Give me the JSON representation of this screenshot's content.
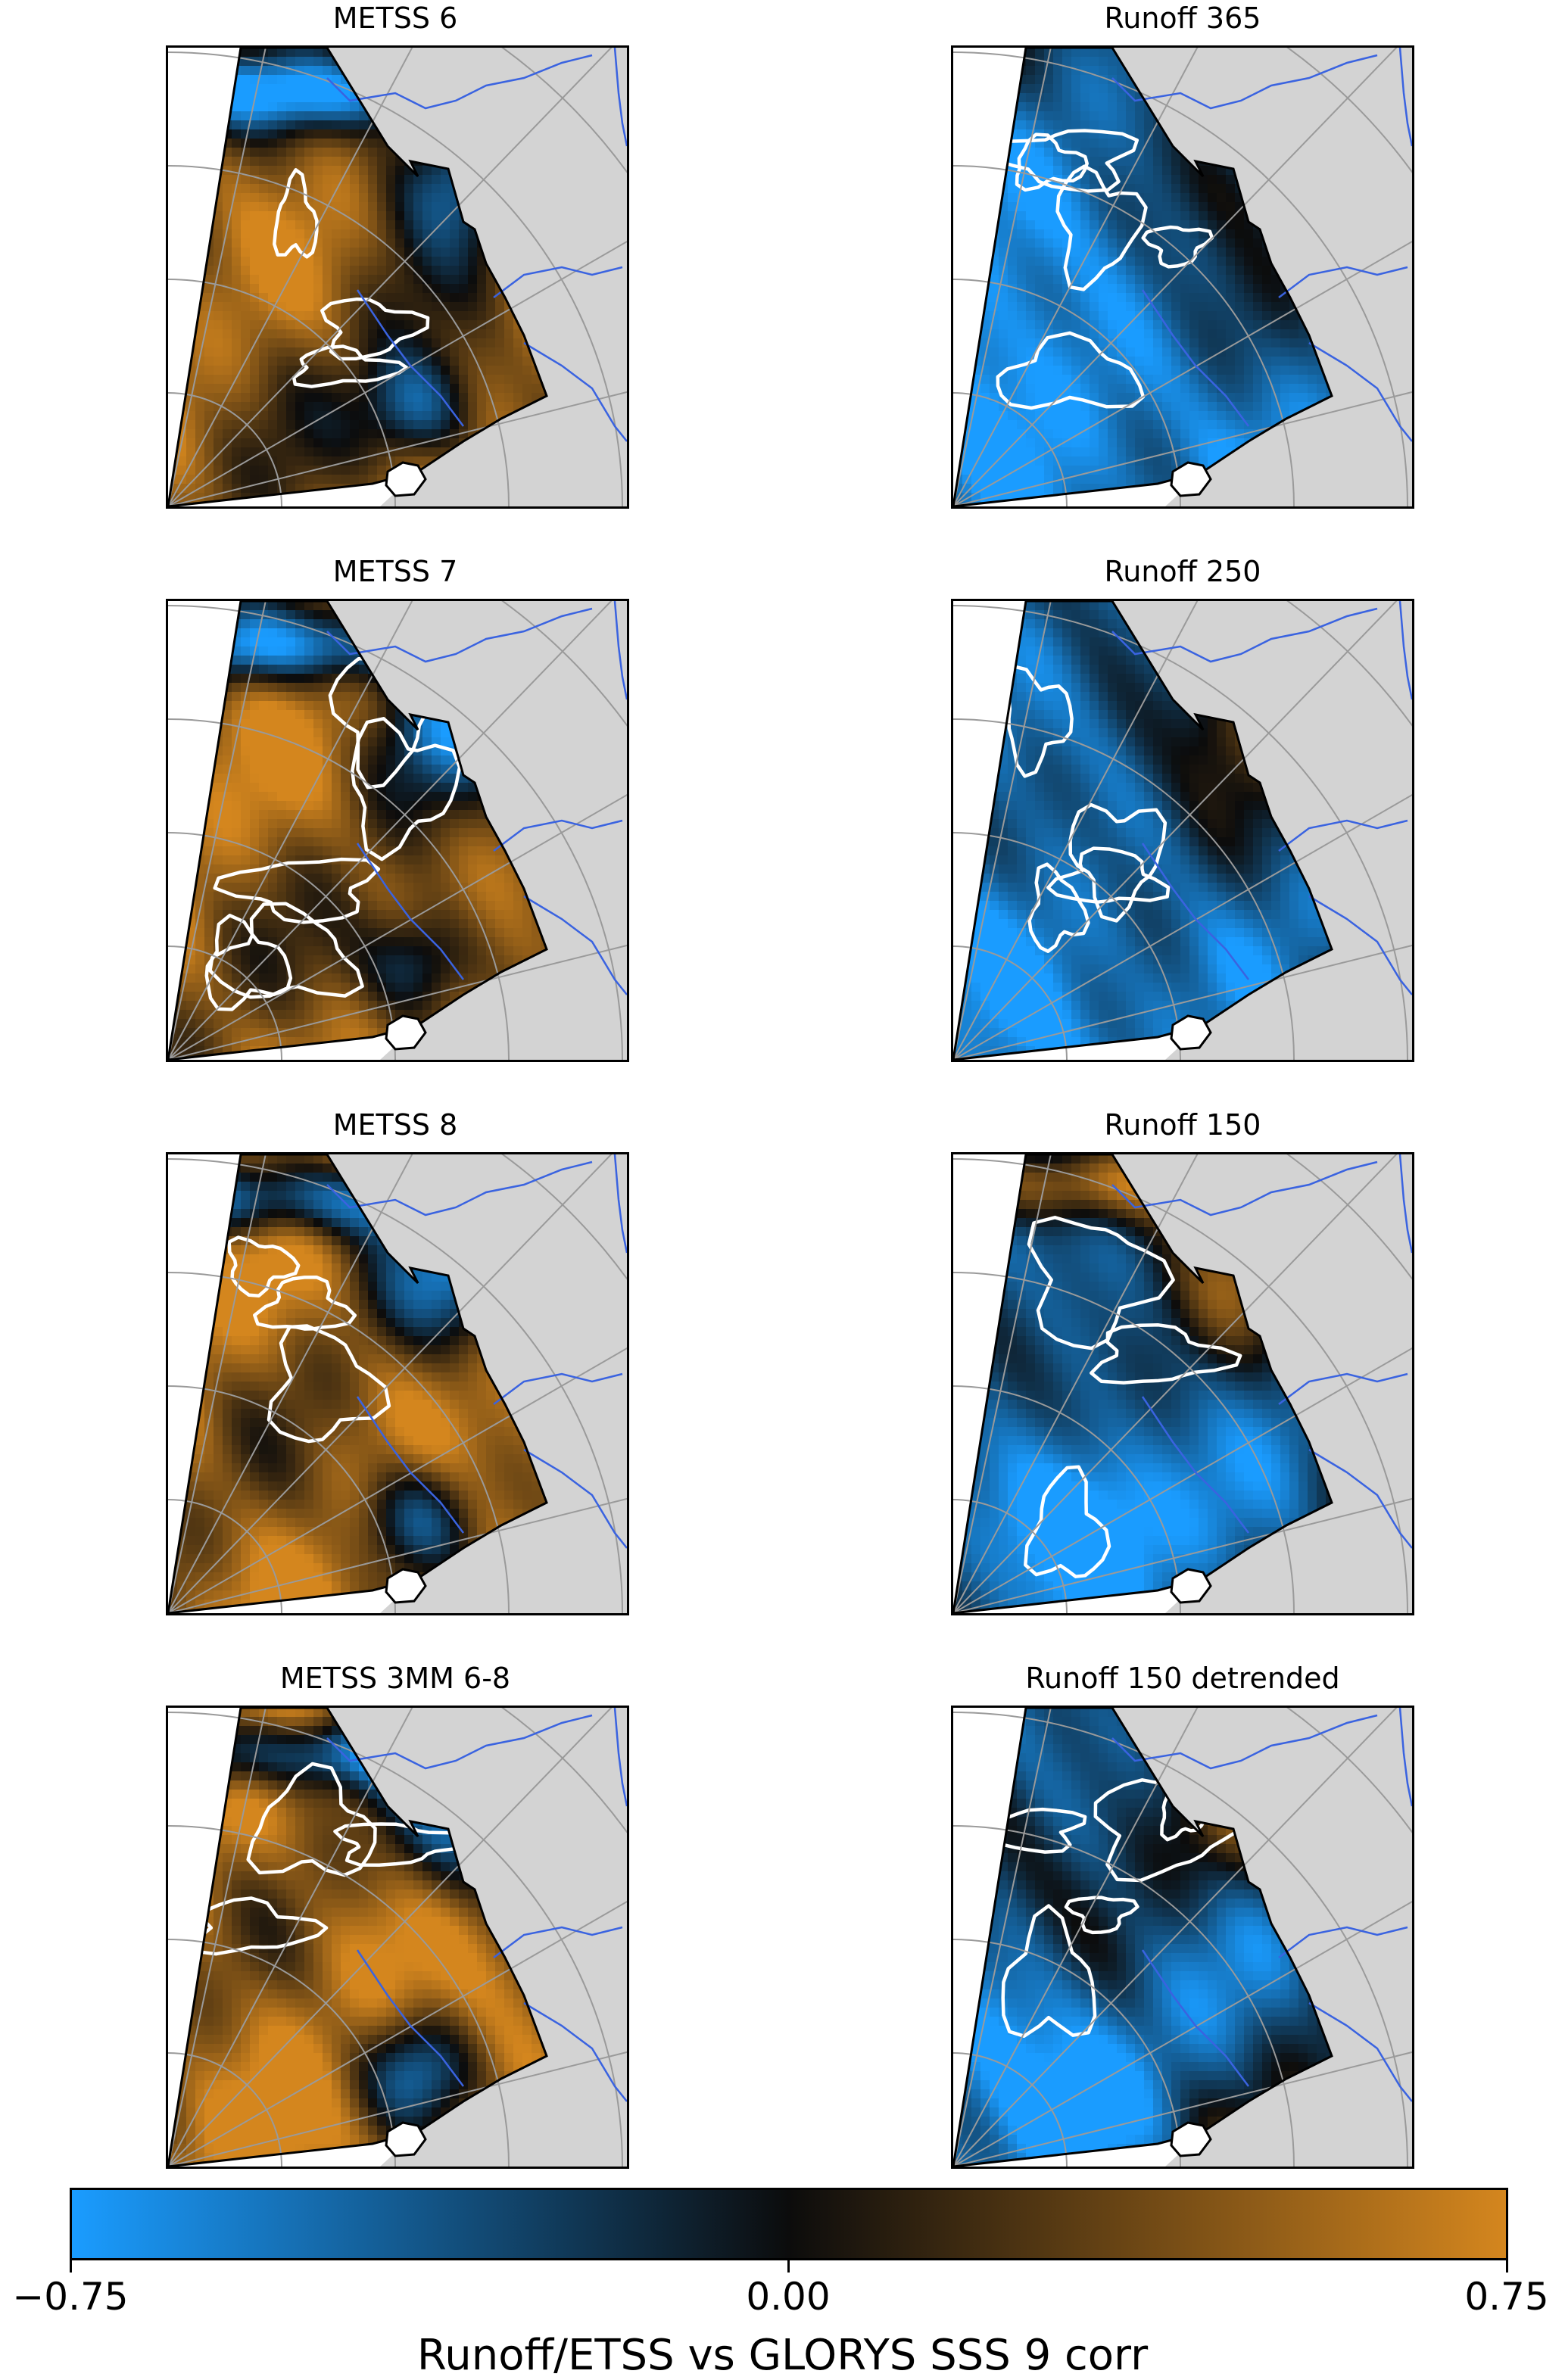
{
  "panels": [
    {
      "id": "metss6",
      "title": "METSS 6",
      "pattern": "metss",
      "seed": 1,
      "shift": 0.0
    },
    {
      "id": "runoff365",
      "title": "Runoff 365",
      "pattern": "runoff",
      "seed": 2,
      "shift": -0.25
    },
    {
      "id": "metss7",
      "title": "METSS 7",
      "pattern": "metss",
      "seed": 3,
      "shift": 0.05
    },
    {
      "id": "runoff250",
      "title": "Runoff 250",
      "pattern": "runoff",
      "seed": 4,
      "shift": -0.15
    },
    {
      "id": "metss8",
      "title": "METSS 8",
      "pattern": "metss",
      "seed": 5,
      "shift": 0.1
    },
    {
      "id": "runoff150",
      "title": "Runoff 150",
      "pattern": "runoff150",
      "seed": 6,
      "shift": 0.0
    },
    {
      "id": "metss3mm",
      "title": "METSS 3MM 6-8",
      "pattern": "metss",
      "seed": 7,
      "shift": 0.15
    },
    {
      "id": "runoff150d",
      "title": "Runoff 150 detrended",
      "pattern": "runoff",
      "seed": 8,
      "shift": -0.1
    }
  ],
  "colorbar": {
    "label": "Runoff/ETSS vs GLORYS SSS 9 corr",
    "ticks": [
      "−0.75",
      "0.00",
      "0.75"
    ],
    "min": -0.75,
    "max": 0.75,
    "colors": [
      "#1a9cff",
      "#0c0c0c",
      "#d4861e"
    ]
  },
  "colors": {
    "land": "#d3d3d3",
    "rivers": "#3a63e0",
    "grid": "#9a9a9a",
    "coast": "#000000",
    "contour": "#ffffff"
  }
}
